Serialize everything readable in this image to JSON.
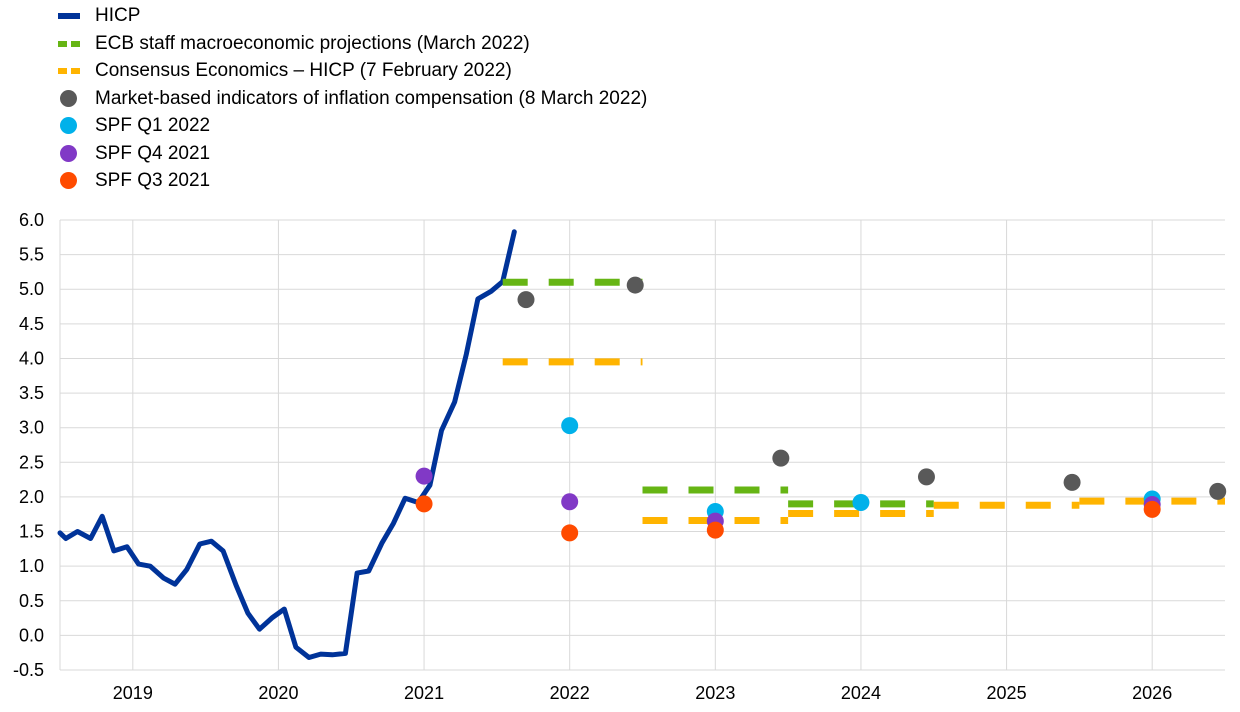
{
  "legend": [
    {
      "label": "HICP",
      "style": "solid",
      "color": "#003399"
    },
    {
      "label": "ECB staff macroeconomic projections (March 2022)",
      "style": "dashed",
      "color": "#66b514"
    },
    {
      "label": "Consensus Economics – HICP (7 February 2022)",
      "style": "dashed",
      "color": "#ffb400"
    },
    {
      "label": "Market-based indicators of inflation compensation (8 March 2022)",
      "style": "dot",
      "color": "#595959"
    },
    {
      "label": "SPF Q1 2022",
      "style": "dot",
      "color": "#00b1ea"
    },
    {
      "label": "SPF Q4 2021",
      "style": "dot",
      "color": "#8139c6"
    },
    {
      "label": "SPF Q3 2021",
      "style": "dot",
      "color": "#ff4b00"
    }
  ],
  "chart_data": {
    "type": "line",
    "xlim": [
      2018.5,
      2026.5
    ],
    "ylim": [
      -0.5,
      6.0
    ],
    "y_ticks": [
      "6.0",
      "5.5",
      "5.0",
      "4.5",
      "4.0",
      "3.5",
      "3.0",
      "2.5",
      "2.0",
      "1.5",
      "1.0",
      "0.5",
      "0.0",
      "-0.5"
    ],
    "x_ticks": [
      "2019",
      "2020",
      "2021",
      "2022",
      "2023",
      "2024",
      "2025",
      "2026"
    ],
    "grid": true,
    "series": [
      {
        "name": "HICP",
        "kind": "line",
        "color": "#003399",
        "points": [
          [
            2018.5,
            1.48
          ],
          [
            2018.54,
            1.4
          ],
          [
            2018.62,
            1.5
          ],
          [
            2018.71,
            1.4
          ],
          [
            2018.79,
            1.72
          ],
          [
            2018.87,
            1.22
          ],
          [
            2018.96,
            1.28
          ],
          [
            2019.04,
            1.03
          ],
          [
            2019.12,
            1.0
          ],
          [
            2019.21,
            0.83
          ],
          [
            2019.29,
            0.74
          ],
          [
            2019.37,
            0.95
          ],
          [
            2019.46,
            1.32
          ],
          [
            2019.54,
            1.36
          ],
          [
            2019.62,
            1.22
          ],
          [
            2019.71,
            0.72
          ],
          [
            2019.79,
            0.32
          ],
          [
            2019.87,
            0.09
          ],
          [
            2019.96,
            0.26
          ],
          [
            2020.04,
            0.38
          ],
          [
            2020.12,
            -0.17
          ],
          [
            2020.21,
            -0.32
          ],
          [
            2020.29,
            -0.27
          ],
          [
            2020.37,
            -0.28
          ],
          [
            2020.46,
            -0.26
          ],
          [
            2020.54,
            0.9
          ],
          [
            2020.62,
            0.93
          ],
          [
            2020.71,
            1.33
          ],
          [
            2020.79,
            1.62
          ],
          [
            2020.87,
            1.98
          ],
          [
            2020.96,
            1.92
          ],
          [
            2021.04,
            2.17
          ],
          [
            2021.12,
            2.96
          ],
          [
            2021.21,
            3.37
          ],
          [
            2021.29,
            4.06
          ],
          [
            2021.37,
            4.86
          ],
          [
            2021.46,
            4.97
          ],
          [
            2021.54,
            5.11
          ],
          [
            2021.62,
            5.83
          ]
        ]
      },
      {
        "name": "ECB staff macroeconomic projections (March 2022)",
        "kind": "dashed",
        "color": "#66b514",
        "segments": [
          {
            "x": [
              2021.54,
              2022.5
            ],
            "y": 5.1
          },
          {
            "x": [
              2022.5,
              2023.5
            ],
            "y": 2.1
          },
          {
            "x": [
              2023.5,
              2024.5
            ],
            "y": 1.9
          }
        ]
      },
      {
        "name": "Consensus Economics – HICP (7 February 2022)",
        "kind": "dashed",
        "color": "#ffb400",
        "segments": [
          {
            "x": [
              2021.54,
              2022.5
            ],
            "y": 3.95
          },
          {
            "x": [
              2022.5,
              2023.5
            ],
            "y": 1.66
          },
          {
            "x": [
              2023.5,
              2024.5
            ],
            "y": 1.76
          },
          {
            "x": [
              2024.5,
              2025.5
            ],
            "y": 1.88
          },
          {
            "x": [
              2025.5,
              2026.5
            ],
            "y": 1.94
          }
        ]
      },
      {
        "name": "Market-based indicators of inflation compensation (8 March 2022)",
        "kind": "dots",
        "color": "#595959",
        "points": [
          [
            2021.7,
            4.85
          ],
          [
            2022.45,
            5.06
          ],
          [
            2023.45,
            2.56
          ],
          [
            2024.45,
            2.29
          ],
          [
            2025.45,
            2.21
          ],
          [
            2026.45,
            2.08
          ]
        ]
      },
      {
        "name": "SPF Q1 2022",
        "kind": "dots",
        "color": "#00b1ea",
        "points": [
          [
            2022.0,
            3.03
          ],
          [
            2023.0,
            1.79
          ],
          [
            2024.0,
            1.92
          ],
          [
            2026.0,
            1.97
          ]
        ]
      },
      {
        "name": "SPF Q4 2021",
        "kind": "dots",
        "color": "#8139c6",
        "points": [
          [
            2021.0,
            2.3
          ],
          [
            2022.0,
            1.93
          ],
          [
            2023.0,
            1.65
          ],
          [
            2026.0,
            1.89
          ]
        ]
      },
      {
        "name": "SPF Q3 2021",
        "kind": "dots",
        "color": "#ff4b00",
        "points": [
          [
            2021.0,
            1.9
          ],
          [
            2022.0,
            1.48
          ],
          [
            2023.0,
            1.52
          ],
          [
            2026.0,
            1.82
          ]
        ]
      }
    ]
  }
}
